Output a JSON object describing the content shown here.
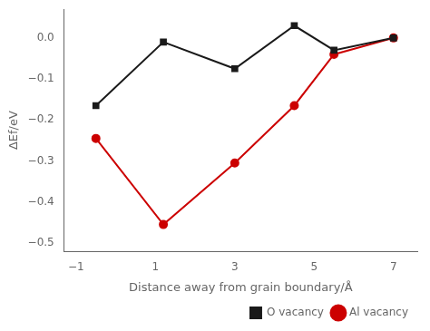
{
  "chart_data": {
    "type": "line",
    "xlabel": "Distance away from grain boundary/Å",
    "ylabel": "ΔEf/eV",
    "x": [
      -0.5,
      1.2,
      3.0,
      4.5,
      5.5,
      7.0
    ],
    "series": [
      {
        "name": "O vacancy",
        "color": "#1a1a1a",
        "marker": "square",
        "values": [
          -0.165,
          -0.01,
          -0.075,
          0.03,
          -0.03,
          0.0
        ]
      },
      {
        "name": "Al vacancy",
        "color": "#cc0000",
        "marker": "circle",
        "values": [
          -0.245,
          -0.455,
          -0.305,
          -0.165,
          -0.04,
          0.0
        ]
      }
    ],
    "xlim": [
      -1.3,
      7.6
    ],
    "ylim": [
      -0.52,
      0.07
    ],
    "xticks": [
      {
        "value": -1,
        "label": "−1"
      },
      1,
      3,
      5,
      7
    ],
    "yticks": [
      {
        "value": 0.0,
        "label": "0.0"
      },
      {
        "value": -0.1,
        "label": "−0.1"
      },
      {
        "value": -0.2,
        "label": "−0.2"
      },
      {
        "value": -0.3,
        "label": "−0.3"
      },
      {
        "value": -0.4,
        "label": "−0.4"
      },
      {
        "value": -0.5,
        "label": "−0.5"
      }
    ],
    "grid": false,
    "legend": "lower right"
  }
}
